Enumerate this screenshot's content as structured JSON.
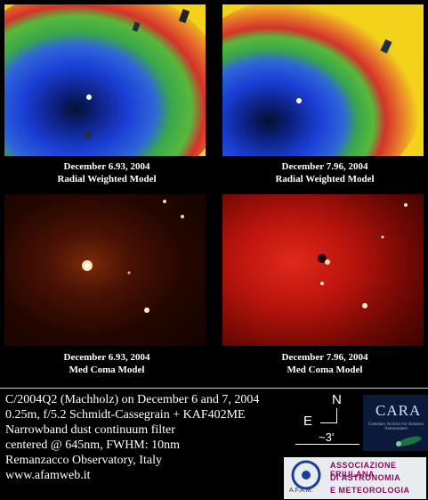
{
  "panels": [
    {
      "caption_line1": "December 6.93, 2004",
      "caption_line2": "Radial Weighted Model"
    },
    {
      "caption_line1": "December 7.96, 2004",
      "caption_line2": "Radial Weighted Model"
    },
    {
      "caption_line1": "December 6.93, 2004",
      "caption_line2": "Med Coma Model"
    },
    {
      "caption_line1": "December 7.96, 2004",
      "caption_line2": "Med Coma Model"
    }
  ],
  "info": {
    "line1": "C/2004Q2 (Machholz) on December 6 and 7, 2004",
    "line2": "0.25m, f/5.2 Schmidt-Cassegrain + KAF402ME",
    "line3": "Narrowband dust continuum filter",
    "line4": "centered @ 645nm, FWHM: 10nm",
    "line5": "Remanzacco Observatory, Italy",
    "line6": "www.afamweb.it"
  },
  "orientation": {
    "north": "N",
    "east": "E",
    "scale": "~3'"
  },
  "logos": {
    "cara": {
      "name": "CARA",
      "tagline": "Cometary Archive for Amateur Astronomers"
    },
    "afam": {
      "abbr": "A.F.A.M.",
      "line1": "ASSOCIAZIONE FRIULANA",
      "line2": "DI ASTRONOMIA",
      "line3": "E METEOROLOGIA"
    }
  },
  "colors": {
    "yellow": "#f2d21a",
    "red": "#d5322a",
    "green": "#3aa84a",
    "blue": "#1a3fd6",
    "darkred": "#2a0500"
  }
}
